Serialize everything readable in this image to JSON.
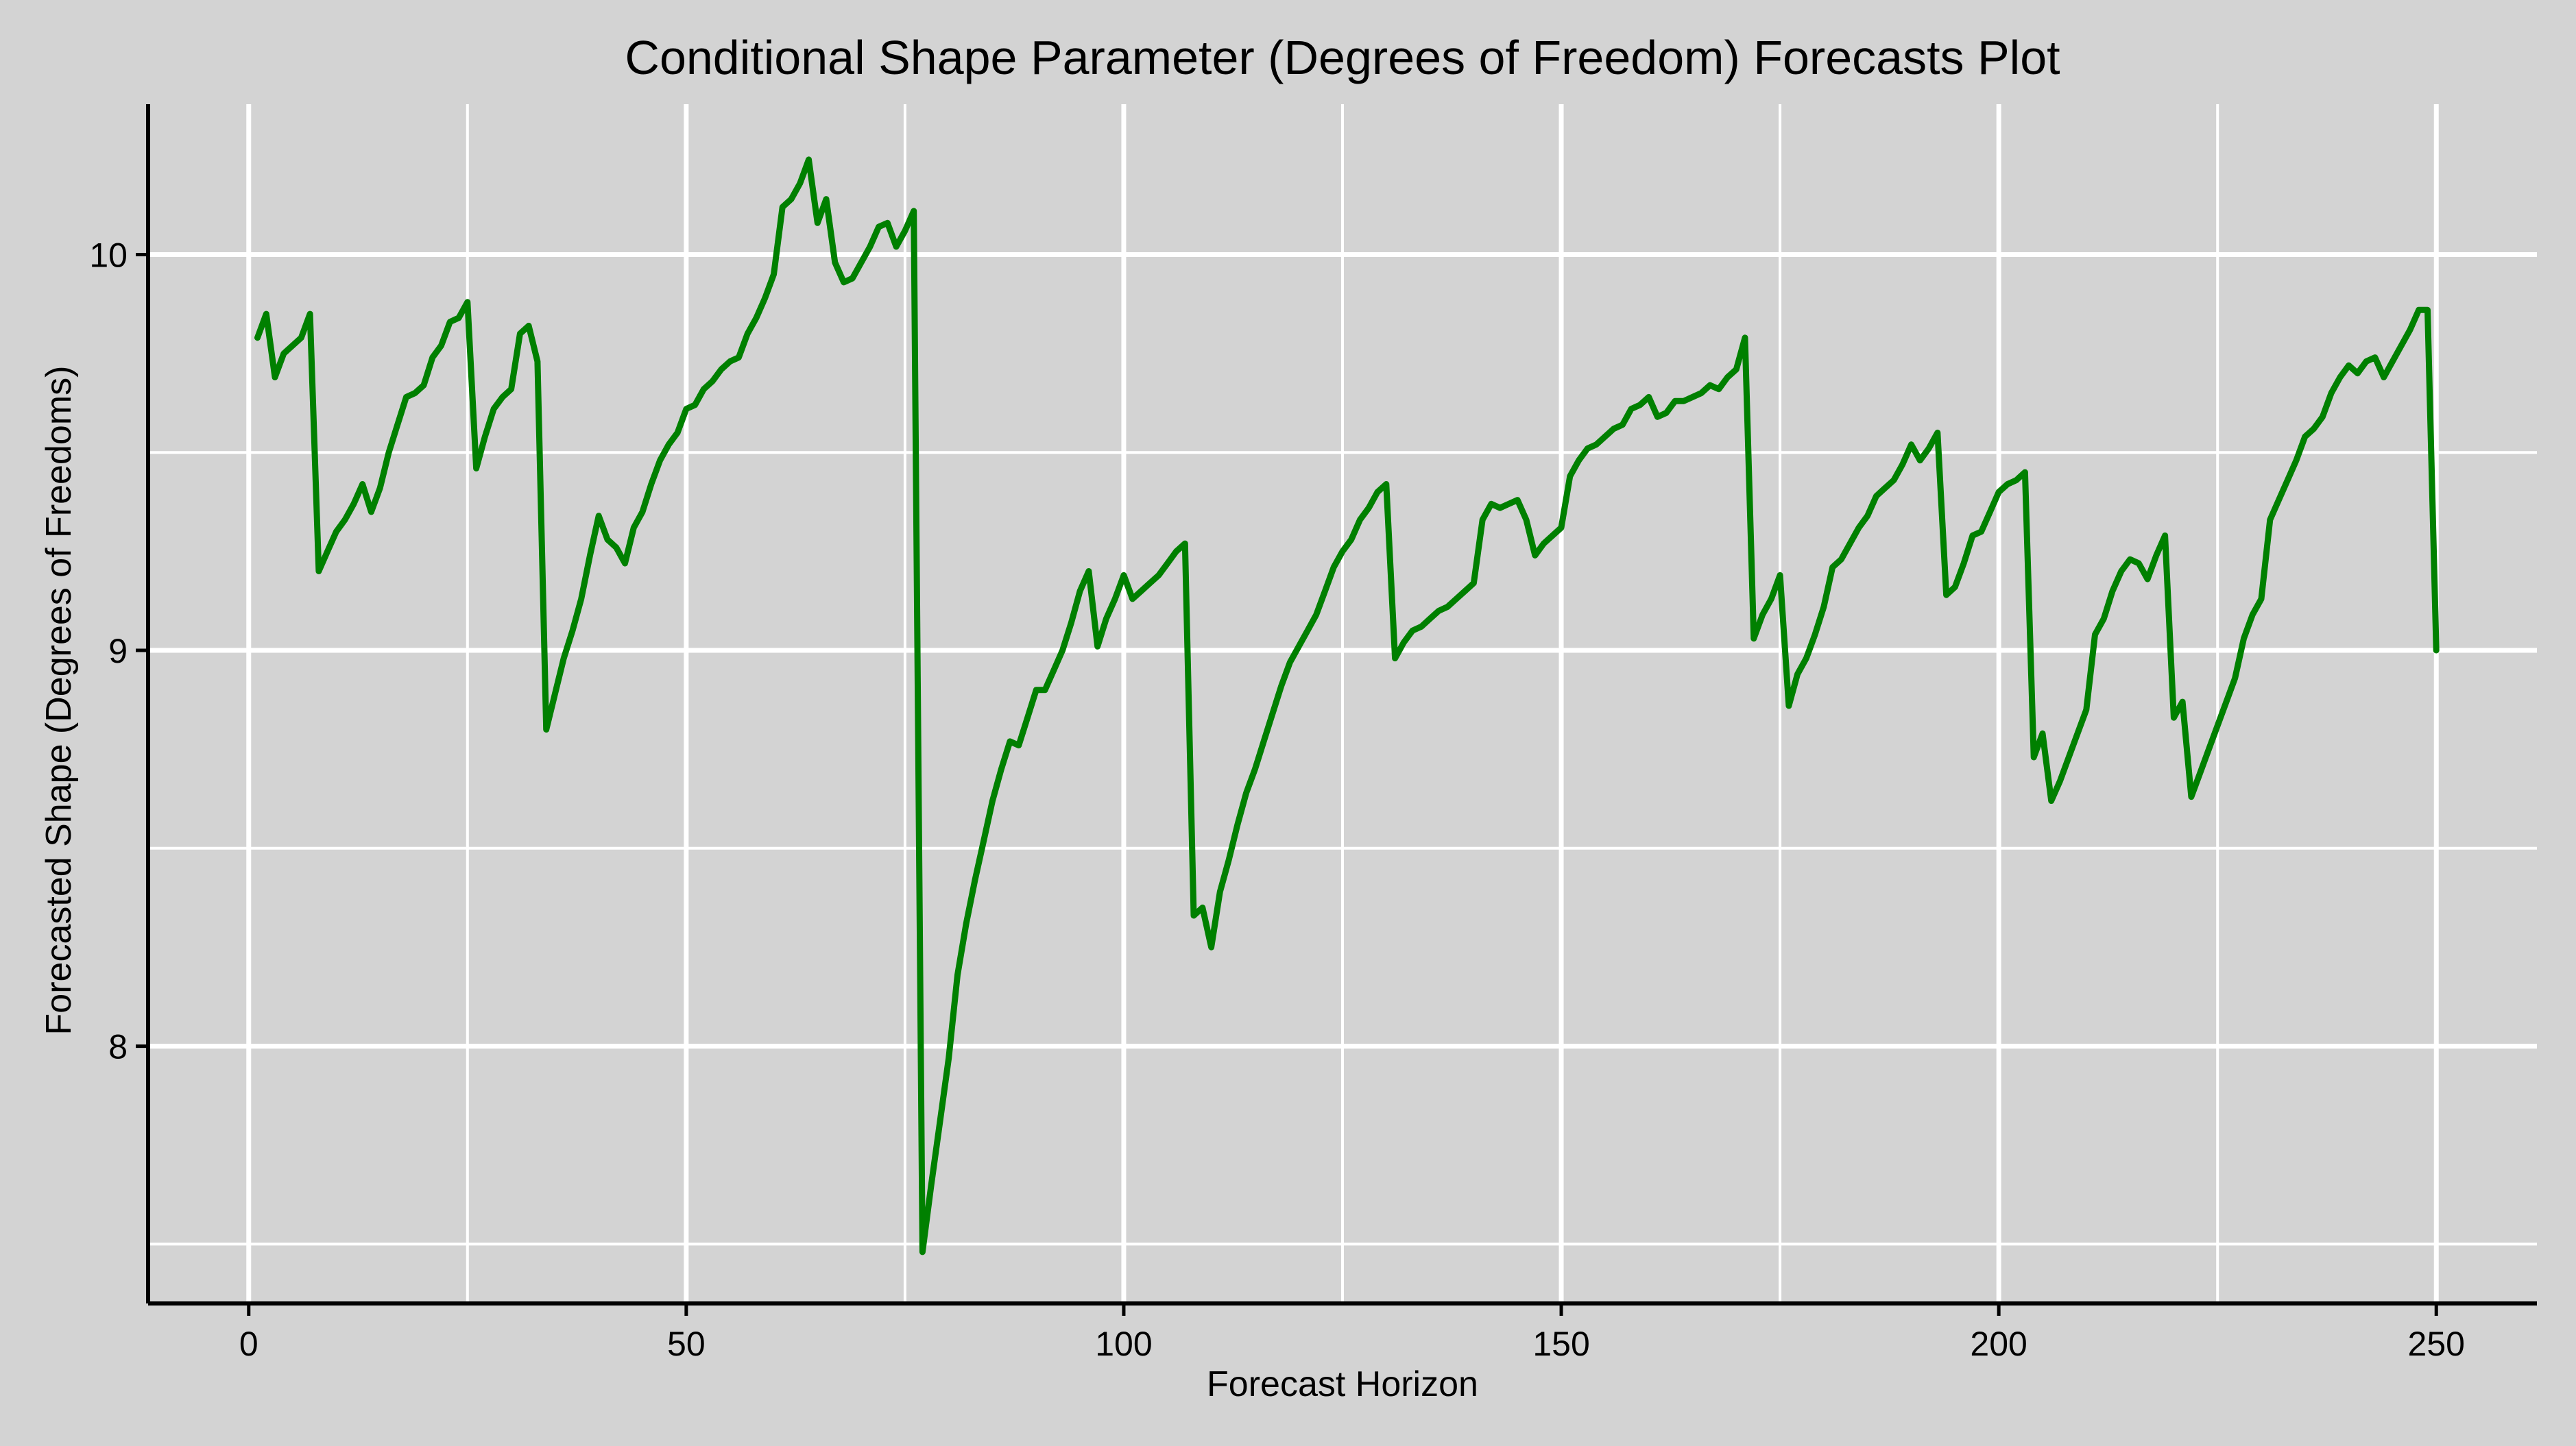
{
  "chart_data": {
    "type": "line",
    "title": "Conditional Shape Parameter (Degrees of Freedom) Forecasts Plot",
    "xlabel": "Forecast Horizon",
    "ylabel": "Forecasted Shape (Degrees of Freedoms)",
    "xlim": [
      -11.5,
      261.5
    ],
    "ylim": [
      7.35,
      10.38
    ],
    "xticks": [
      0,
      50,
      100,
      150,
      200,
      250
    ],
    "xtick_labels": [
      "0",
      "50",
      "100",
      "150",
      "200",
      "250"
    ],
    "yticks": [
      8,
      9,
      10
    ],
    "ytick_labels": [
      "8",
      "9",
      "10"
    ],
    "x_minor_grid": [
      25,
      75,
      125,
      175,
      225
    ],
    "y_minor_grid": [
      7.5,
      8.5,
      9.5
    ],
    "grid": true,
    "line_color": "#008000",
    "background_color": "#d3d3d3",
    "series": [
      {
        "values": [
          [
            1,
            9.79
          ],
          [
            2,
            9.85
          ],
          [
            3,
            9.69
          ],
          [
            4,
            9.75
          ],
          [
            5,
            9.77
          ],
          [
            6,
            9.79
          ],
          [
            7,
            9.85
          ],
          [
            8,
            9.2
          ],
          [
            9,
            9.25
          ],
          [
            10,
            9.3
          ],
          [
            11,
            9.33
          ],
          [
            12,
            9.37
          ],
          [
            13,
            9.42
          ],
          [
            14,
            9.35
          ],
          [
            15,
            9.41
          ],
          [
            16,
            9.5
          ],
          [
            17,
            9.57
          ],
          [
            18,
            9.64
          ],
          [
            19,
            9.65
          ],
          [
            20,
            9.67
          ],
          [
            21,
            9.74
          ],
          [
            22,
            9.77
          ],
          [
            23,
            9.83
          ],
          [
            24,
            9.84
          ],
          [
            25,
            9.88
          ],
          [
            26,
            9.46
          ],
          [
            27,
            9.54
          ],
          [
            28,
            9.61
          ],
          [
            29,
            9.64
          ],
          [
            30,
            9.66
          ],
          [
            31,
            9.8
          ],
          [
            32,
            9.82
          ],
          [
            33,
            9.73
          ],
          [
            34,
            8.8
          ],
          [
            35,
            8.89
          ],
          [
            36,
            8.98
          ],
          [
            37,
            9.05
          ],
          [
            38,
            9.13
          ],
          [
            39,
            9.24
          ],
          [
            40,
            9.34
          ],
          [
            41,
            9.28
          ],
          [
            42,
            9.26
          ],
          [
            43,
            9.22
          ],
          [
            44,
            9.31
          ],
          [
            45,
            9.35
          ],
          [
            46,
            9.42
          ],
          [
            47,
            9.48
          ],
          [
            48,
            9.52
          ],
          [
            49,
            9.55
          ],
          [
            50,
            9.61
          ],
          [
            51,
            9.62
          ],
          [
            52,
            9.66
          ],
          [
            53,
            9.68
          ],
          [
            54,
            9.71
          ],
          [
            55,
            9.73
          ],
          [
            56,
            9.74
          ],
          [
            57,
            9.8
          ],
          [
            58,
            9.84
          ],
          [
            59,
            9.89
          ],
          [
            60,
            9.95
          ],
          [
            61,
            10.12
          ],
          [
            62,
            10.14
          ],
          [
            63,
            10.18
          ],
          [
            64,
            10.24
          ],
          [
            65,
            10.08
          ],
          [
            66,
            10.14
          ],
          [
            67,
            9.98
          ],
          [
            68,
            9.93
          ],
          [
            69,
            9.94
          ],
          [
            70,
            9.98
          ],
          [
            71,
            10.02
          ],
          [
            72,
            10.07
          ],
          [
            73,
            10.08
          ],
          [
            74,
            10.02
          ],
          [
            75,
            10.06
          ],
          [
            76,
            10.11
          ],
          [
            77,
            7.48
          ],
          [
            78,
            7.65
          ],
          [
            79,
            7.81
          ],
          [
            80,
            7.97
          ],
          [
            81,
            8.18
          ],
          [
            82,
            8.31
          ],
          [
            83,
            8.42
          ],
          [
            84,
            8.52
          ],
          [
            85,
            8.62
          ],
          [
            86,
            8.7
          ],
          [
            87,
            8.77
          ],
          [
            88,
            8.76
          ],
          [
            89,
            8.83
          ],
          [
            90,
            8.9
          ],
          [
            91,
            8.9
          ],
          [
            92,
            8.95
          ],
          [
            93,
            9.0
          ],
          [
            94,
            9.07
          ],
          [
            95,
            9.15
          ],
          [
            96,
            9.2
          ],
          [
            97,
            9.01
          ],
          [
            98,
            9.08
          ],
          [
            99,
            9.13
          ],
          [
            100,
            9.19
          ],
          [
            101,
            9.13
          ],
          [
            102,
            9.15
          ],
          [
            103,
            9.17
          ],
          [
            104,
            9.19
          ],
          [
            105,
            9.22
          ],
          [
            106,
            9.25
          ],
          [
            107,
            9.27
          ],
          [
            108,
            8.33
          ],
          [
            109,
            8.35
          ],
          [
            110,
            8.25
          ],
          [
            111,
            8.39
          ],
          [
            112,
            8.47
          ],
          [
            113,
            8.56
          ],
          [
            114,
            8.64
          ],
          [
            115,
            8.7
          ],
          [
            116,
            8.77
          ],
          [
            117,
            8.84
          ],
          [
            118,
            8.91
          ],
          [
            119,
            8.97
          ],
          [
            120,
            9.01
          ],
          [
            121,
            9.05
          ],
          [
            122,
            9.09
          ],
          [
            123,
            9.15
          ],
          [
            124,
            9.21
          ],
          [
            125,
            9.25
          ],
          [
            126,
            9.28
          ],
          [
            127,
            9.33
          ],
          [
            128,
            9.36
          ],
          [
            129,
            9.4
          ],
          [
            130,
            9.42
          ],
          [
            131,
            8.98
          ],
          [
            132,
            9.02
          ],
          [
            133,
            9.05
          ],
          [
            134,
            9.06
          ],
          [
            135,
            9.08
          ],
          [
            136,
            9.1
          ],
          [
            137,
            9.11
          ],
          [
            138,
            9.13
          ],
          [
            139,
            9.15
          ],
          [
            140,
            9.17
          ],
          [
            141,
            9.33
          ],
          [
            142,
            9.37
          ],
          [
            143,
            9.36
          ],
          [
            144,
            9.37
          ],
          [
            145,
            9.38
          ],
          [
            146,
            9.33
          ],
          [
            147,
            9.24
          ],
          [
            148,
            9.27
          ],
          [
            149,
            9.29
          ],
          [
            150,
            9.31
          ],
          [
            151,
            9.44
          ],
          [
            152,
            9.48
          ],
          [
            153,
            9.51
          ],
          [
            154,
            9.52
          ],
          [
            155,
            9.54
          ],
          [
            156,
            9.56
          ],
          [
            157,
            9.57
          ],
          [
            158,
            9.61
          ],
          [
            159,
            9.62
          ],
          [
            160,
            9.64
          ],
          [
            161,
            9.59
          ],
          [
            162,
            9.6
          ],
          [
            163,
            9.63
          ],
          [
            164,
            9.63
          ],
          [
            165,
            9.64
          ],
          [
            166,
            9.65
          ],
          [
            167,
            9.67
          ],
          [
            168,
            9.66
          ],
          [
            169,
            9.69
          ],
          [
            170,
            9.71
          ],
          [
            171,
            9.79
          ],
          [
            172,
            9.03
          ],
          [
            173,
            9.09
          ],
          [
            174,
            9.13
          ],
          [
            175,
            9.19
          ],
          [
            176,
            8.86
          ],
          [
            177,
            8.94
          ],
          [
            178,
            8.98
          ],
          [
            179,
            9.04
          ],
          [
            180,
            9.11
          ],
          [
            181,
            9.21
          ],
          [
            182,
            9.23
          ],
          [
            183,
            9.27
          ],
          [
            184,
            9.31
          ],
          [
            185,
            9.34
          ],
          [
            186,
            9.39
          ],
          [
            187,
            9.41
          ],
          [
            188,
            9.43
          ],
          [
            189,
            9.47
          ],
          [
            190,
            9.52
          ],
          [
            191,
            9.48
          ],
          [
            192,
            9.51
          ],
          [
            193,
            9.55
          ],
          [
            194,
            9.14
          ],
          [
            195,
            9.16
          ],
          [
            196,
            9.22
          ],
          [
            197,
            9.29
          ],
          [
            198,
            9.3
          ],
          [
            199,
            9.35
          ],
          [
            200,
            9.4
          ],
          [
            201,
            9.42
          ],
          [
            202,
            9.43
          ],
          [
            203,
            9.45
          ],
          [
            204,
            8.73
          ],
          [
            205,
            8.79
          ],
          [
            206,
            8.62
          ],
          [
            207,
            8.67
          ],
          [
            208,
            8.73
          ],
          [
            209,
            8.79
          ],
          [
            210,
            8.85
          ],
          [
            211,
            9.04
          ],
          [
            212,
            9.08
          ],
          [
            213,
            9.15
          ],
          [
            214,
            9.2
          ],
          [
            215,
            9.23
          ],
          [
            216,
            9.22
          ],
          [
            217,
            9.18
          ],
          [
            218,
            9.24
          ],
          [
            219,
            9.29
          ],
          [
            220,
            8.83
          ],
          [
            221,
            8.87
          ],
          [
            222,
            8.63
          ],
          [
            223,
            8.69
          ],
          [
            224,
            8.75
          ],
          [
            225,
            8.81
          ],
          [
            226,
            8.87
          ],
          [
            227,
            8.93
          ],
          [
            228,
            9.03
          ],
          [
            229,
            9.09
          ],
          [
            230,
            9.13
          ],
          [
            231,
            9.33
          ],
          [
            232,
            9.38
          ],
          [
            233,
            9.43
          ],
          [
            234,
            9.48
          ],
          [
            235,
            9.54
          ],
          [
            236,
            9.56
          ],
          [
            237,
            9.59
          ],
          [
            238,
            9.65
          ],
          [
            239,
            9.69
          ],
          [
            240,
            9.72
          ],
          [
            241,
            9.7
          ],
          [
            242,
            9.73
          ],
          [
            243,
            9.74
          ],
          [
            244,
            9.69
          ],
          [
            245,
            9.73
          ],
          [
            246,
            9.77
          ],
          [
            247,
            9.81
          ],
          [
            248,
            9.86
          ],
          [
            249,
            9.86
          ],
          [
            250,
            9.0
          ]
        ]
      }
    ]
  }
}
